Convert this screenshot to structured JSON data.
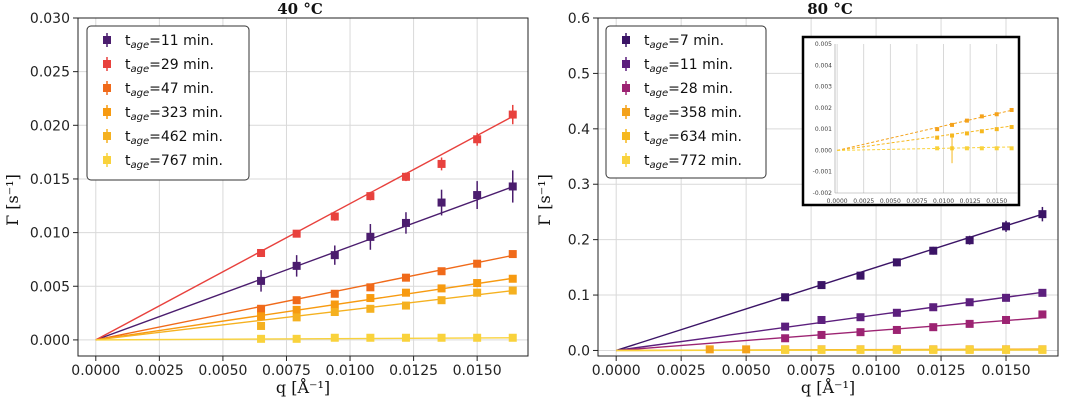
{
  "chart_data": [
    {
      "type": "scatter",
      "title": "40 °C",
      "xlabel": "q [Å⁻¹]",
      "ylabel": "Γ [s⁻¹]",
      "xlim": [
        -0.0007,
        0.017
      ],
      "ylim": [
        -0.0015,
        0.03
      ],
      "xticks": [
        "0.0000",
        "0.0025",
        "0.0050",
        "0.0075",
        "0.0100",
        "0.0125",
        "0.0150"
      ],
      "yticks": [
        "0.000",
        "0.005",
        "0.010",
        "0.015",
        "0.020",
        "0.025",
        "0.030"
      ],
      "grid": true,
      "legend_position": "top-left",
      "series": [
        {
          "name_prefix": "t",
          "name_sub": "age",
          "name_value": "=11 min.",
          "color": "#4b1d6e",
          "slope": 0.87,
          "x": [
            0.0065,
            0.0079,
            0.0094,
            0.0108,
            0.0122,
            0.0136,
            0.015,
            0.0164
          ],
          "y": [
            0.0055,
            0.0069,
            0.0079,
            0.0096,
            0.0109,
            0.0128,
            0.0135,
            0.0143
          ],
          "err": [
            0.001,
            0.001,
            0.0009,
            0.0012,
            0.001,
            0.0012,
            0.0013,
            0.0015
          ]
        },
        {
          "name_prefix": "t",
          "name_sub": "age",
          "name_value": "=29 min.",
          "color": "#e8413d",
          "slope": 1.27,
          "x": [
            0.0065,
            0.0079,
            0.0094,
            0.0108,
            0.0122,
            0.0136,
            0.015,
            0.0164
          ],
          "y": [
            0.0081,
            0.0099,
            0.0115,
            0.0134,
            0.0152,
            0.0164,
            0.0187,
            0.021
          ],
          "err": [
            0.0003,
            0.0003,
            0.0004,
            0.0004,
            0.0004,
            0.0006,
            0.0006,
            0.0009
          ]
        },
        {
          "name_prefix": "t",
          "name_sub": "age",
          "name_value": "=47 min.",
          "color": "#f06a1a",
          "slope": 0.48,
          "x": [
            0.0065,
            0.0079,
            0.0094,
            0.0108,
            0.0122,
            0.0136,
            0.015,
            0.0164
          ],
          "y": [
            0.0029,
            0.0037,
            0.0043,
            0.0049,
            0.0058,
            0.0064,
            0.0071,
            0.008
          ],
          "err": [
            0.0002,
            0.0002,
            0.0002,
            0.0002,
            0.0002,
            0.0002,
            0.0002,
            0.0003
          ]
        },
        {
          "name_prefix": "t",
          "name_sub": "age",
          "name_value": "=323 min.",
          "color": "#f79a10",
          "slope": 0.35,
          "x": [
            0.0065,
            0.0079,
            0.0094,
            0.0108,
            0.0122,
            0.0136,
            0.015,
            0.0164
          ],
          "y": [
            0.0022,
            0.0028,
            0.0033,
            0.0039,
            0.0044,
            0.0048,
            0.0053,
            0.0057
          ],
          "err": [
            0.0002,
            0.0002,
            0.0002,
            0.0002,
            0.0002,
            0.0002,
            0.0002,
            0.0002
          ]
        },
        {
          "name_prefix": "t",
          "name_sub": "age",
          "name_value": "=462 min.",
          "color": "#f5b120",
          "slope": 0.28,
          "x": [
            0.0065,
            0.0079,
            0.0094,
            0.0108,
            0.0122,
            0.0136,
            0.015,
            0.0164
          ],
          "y": [
            0.0013,
            0.0021,
            0.0026,
            0.0029,
            0.0032,
            0.0037,
            0.0044,
            0.0046
          ],
          "err": [
            0.0002,
            0.0002,
            0.0002,
            0.0002,
            0.0002,
            0.0002,
            0.0002,
            0.0002
          ]
        },
        {
          "name_prefix": "t",
          "name_sub": "age",
          "name_value": "=767 min.",
          "color": "#f9d23c",
          "slope": 0.012,
          "x": [
            0.0065,
            0.0079,
            0.0094,
            0.0108,
            0.0122,
            0.0136,
            0.015,
            0.0164
          ],
          "y": [
            0.0001,
            0.0001,
            0.0002,
            0.0002,
            0.0002,
            0.0002,
            0.0002,
            0.0002
          ],
          "err": [
            0.0002,
            0.0002,
            0.0002,
            0.0002,
            0.0002,
            0.0002,
            0.0002,
            0.0002
          ]
        }
      ]
    },
    {
      "type": "scatter",
      "title": "80 °C",
      "xlabel": "q [Å⁻¹]",
      "ylabel": "Γ [s⁻¹]",
      "xlim": [
        -0.0007,
        0.017
      ],
      "ylim": [
        -0.01,
        0.6
      ],
      "xticks": [
        "0.0000",
        "0.0025",
        "0.0050",
        "0.0075",
        "0.0100",
        "0.0125",
        "0.0150"
      ],
      "yticks": [
        "0.0",
        "0.1",
        "0.2",
        "0.3",
        "0.4",
        "0.5",
        "0.6"
      ],
      "grid": true,
      "legend_position": "top-left",
      "series": [
        {
          "name_prefix": "t",
          "name_sub": "age",
          "name_value": "=7 min.",
          "color": "#3b1466",
          "slope": 15.0,
          "x": [
            0.0065,
            0.0079,
            0.0094,
            0.0108,
            0.0122,
            0.0136,
            0.015,
            0.0164
          ],
          "y": [
            0.096,
            0.118,
            0.135,
            0.159,
            0.18,
            0.199,
            0.224,
            0.246
          ],
          "err": [
            0.006,
            0.006,
            0.006,
            0.007,
            0.007,
            0.008,
            0.01,
            0.013
          ]
        },
        {
          "name_prefix": "t",
          "name_sub": "age",
          "name_value": "=11 min.",
          "color": "#5c1f7d",
          "slope": 6.4,
          "x": [
            0.0065,
            0.0079,
            0.0094,
            0.0108,
            0.0122,
            0.0136,
            0.015,
            0.0164
          ],
          "y": [
            0.043,
            0.055,
            0.06,
            0.068,
            0.078,
            0.087,
            0.095,
            0.104
          ],
          "err": [
            0.002,
            0.002,
            0.002,
            0.002,
            0.002,
            0.003,
            0.003,
            0.004
          ]
        },
        {
          "name_prefix": "t",
          "name_sub": "age",
          "name_value": "=28 min.",
          "color": "#9c2372",
          "slope": 3.6,
          "x": [
            0.0065,
            0.0079,
            0.0094,
            0.0108,
            0.0122,
            0.0136,
            0.015,
            0.0164
          ],
          "y": [
            0.022,
            0.028,
            0.033,
            0.037,
            0.042,
            0.048,
            0.055,
            0.065
          ],
          "err": [
            0.002,
            0.002,
            0.002,
            0.002,
            0.002,
            0.003,
            0.003,
            0.004
          ]
        },
        {
          "name_prefix": "t",
          "name_sub": "age",
          "name_value": "=358 min.",
          "color": "#f4a21b",
          "slope": 0.15,
          "x": [
            0.0036,
            0.005,
            0.0065,
            0.0079,
            0.0094,
            0.0108,
            0.0122,
            0.0136,
            0.015,
            0.0164
          ],
          "y": [
            0.002,
            0.002,
            0.002,
            0.002,
            0.002,
            0.002,
            0.002,
            0.002,
            0.002,
            0.002
          ],
          "err": [
            0.001,
            0.001,
            0.001,
            0.001,
            0.001,
            0.001,
            0.001,
            0.001,
            0.001,
            0.001
          ]
        },
        {
          "name_prefix": "t",
          "name_sub": "age",
          "name_value": "=634 min.",
          "color": "#f6b81f",
          "slope": 0.1,
          "x": [
            0.0065,
            0.0079,
            0.0094,
            0.0108,
            0.0122,
            0.0136,
            0.015,
            0.0164
          ],
          "y": [
            0.0015,
            0.0015,
            0.0015,
            0.0015,
            0.0015,
            0.0015,
            0.0015,
            0.0015
          ],
          "err": [
            0.001,
            0.001,
            0.001,
            0.001,
            0.001,
            0.001,
            0.001,
            0.001
          ]
        },
        {
          "name_prefix": "t",
          "name_sub": "age",
          "name_value": "=772 min.",
          "color": "#f9d23c",
          "slope": 0.05,
          "x": [
            0.0065,
            0.0079,
            0.0094,
            0.0108,
            0.0122,
            0.0136,
            0.015,
            0.0164
          ],
          "y": [
            0.001,
            0.001,
            0.001,
            0.001,
            0.001,
            0.001,
            0.001,
            0.001
          ],
          "err": [
            0.001,
            0.001,
            0.001,
            0.001,
            0.001,
            0.001,
            0.001,
            0.001
          ]
        }
      ],
      "inset": {
        "xlim": [
          -0.0002,
          0.017
        ],
        "ylim": [
          -0.002,
          0.005
        ],
        "xticks": [
          "0.0000",
          "0.0025",
          "0.0050",
          "0.0075",
          "0.0100",
          "0.0125",
          "0.0150"
        ],
        "yticks": [
          "-0.002",
          "-0.001",
          "0.000",
          "0.001",
          "0.002",
          "0.003",
          "0.004",
          "0.005"
        ],
        "series": [
          {
            "color": "#f4a21b",
            "slope": 0.115,
            "x": [
              0.0094,
              0.0108,
              0.0122,
              0.0136,
              0.015,
              0.0164
            ],
            "y": [
              0.001,
              0.0012,
              0.0014,
              0.0016,
              0.0017,
              0.0019
            ]
          },
          {
            "color": "#f6b81f",
            "slope": 0.07,
            "x": [
              0.0094,
              0.0108,
              0.0122,
              0.0136,
              0.015,
              0.0164
            ],
            "y": [
              0.0006,
              0.0007,
              0.0008,
              0.0009,
              0.001,
              0.0011
            ]
          },
          {
            "color": "#f9d23c",
            "slope": 0.01,
            "x": [
              0.0094,
              0.0108,
              0.0122,
              0.0136,
              0.015,
              0.0164
            ],
            "y": [
              0.0001,
              0.0001,
              0.0001,
              0.0001,
              0.0001,
              0.0001
            ]
          }
        ]
      }
    }
  ]
}
